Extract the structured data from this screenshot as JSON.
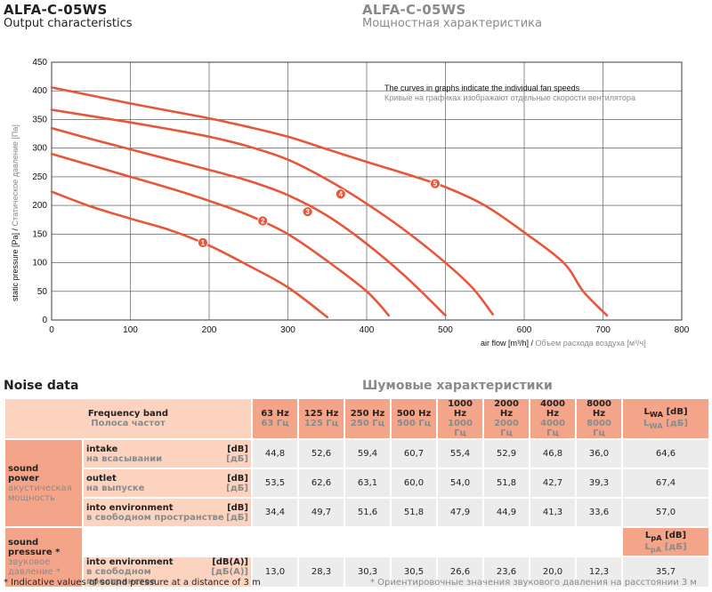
{
  "header": {
    "title_en": "ALFA-C-05WS",
    "subtitle_en": "Output characteristics",
    "title_ru": "ALFA-C-05WS",
    "subtitle_ru": "Мощностная характеристика"
  },
  "chart_data": {
    "type": "line",
    "title": "",
    "xlabel_en": "air flow [m³/h]",
    "xlabel_ru": "Объем расхода воздуха [м³/ч]",
    "ylabel_en": "static pressure [Pa]",
    "ylabel_ru": "Статическое давление [Па]",
    "xlim": [
      0,
      800
    ],
    "ylim": [
      0,
      450
    ],
    "xticks": [
      0,
      100,
      200,
      300,
      400,
      500,
      600,
      700,
      800
    ],
    "yticks": [
      0,
      50,
      100,
      150,
      200,
      250,
      300,
      350,
      400,
      450
    ],
    "grid": true,
    "note_en": "The curves in graphs indicate the individual fan speeds",
    "note_ru": "Кривые на графиках изображают отдельные скорости вентилятора",
    "series": [
      {
        "marker": "1",
        "marker_at": [
          192,
          135
        ],
        "points": [
          [
            0,
            224
          ],
          [
            50,
            198
          ],
          [
            100,
            177
          ],
          [
            150,
            157
          ],
          [
            200,
            130
          ],
          [
            250,
            95
          ],
          [
            300,
            57
          ],
          [
            350,
            5
          ]
        ]
      },
      {
        "marker": "2",
        "marker_at": [
          268,
          173
        ],
        "points": [
          [
            0,
            290
          ],
          [
            50,
            270
          ],
          [
            100,
            250
          ],
          [
            150,
            230
          ],
          [
            200,
            208
          ],
          [
            250,
            183
          ],
          [
            300,
            150
          ],
          [
            350,
            103
          ],
          [
            400,
            50
          ],
          [
            428,
            8
          ]
        ]
      },
      {
        "marker": "3",
        "marker_at": [
          325,
          189
        ],
        "points": [
          [
            0,
            335
          ],
          [
            50,
            316
          ],
          [
            100,
            298
          ],
          [
            150,
            280
          ],
          [
            200,
            262
          ],
          [
            250,
            243
          ],
          [
            300,
            218
          ],
          [
            350,
            182
          ],
          [
            400,
            133
          ],
          [
            450,
            75
          ],
          [
            500,
            8
          ]
        ]
      },
      {
        "marker": "4",
        "marker_at": [
          367,
          220
        ],
        "points": [
          [
            0,
            367
          ],
          [
            50,
            356
          ],
          [
            100,
            345
          ],
          [
            150,
            333
          ],
          [
            200,
            320
          ],
          [
            250,
            303
          ],
          [
            300,
            280
          ],
          [
            350,
            245
          ],
          [
            400,
            203
          ],
          [
            450,
            155
          ],
          [
            500,
            100
          ],
          [
            535,
            55
          ],
          [
            560,
            10
          ]
        ]
      },
      {
        "marker": "5",
        "marker_at": [
          487,
          238
        ],
        "points": [
          [
            0,
            406
          ],
          [
            50,
            392
          ],
          [
            100,
            378
          ],
          [
            150,
            365
          ],
          [
            200,
            352
          ],
          [
            250,
            337
          ],
          [
            300,
            320
          ],
          [
            350,
            298
          ],
          [
            400,
            276
          ],
          [
            450,
            255
          ],
          [
            500,
            232
          ],
          [
            550,
            200
          ],
          [
            600,
            153
          ],
          [
            650,
            100
          ],
          [
            675,
            50
          ],
          [
            705,
            8
          ]
        ]
      }
    ],
    "line_color": "#e8563a"
  },
  "noise": {
    "title_en": "Noise data",
    "title_ru": "Шумовые характеристики",
    "band_en": "Frequency band",
    "band_ru": "Полоса частот",
    "freqs_en": [
      "63 Hz",
      "125 Hz",
      "250 Hz",
      "500 Hz",
      "1000 Hz",
      "2000 Hz",
      "4000 Hz",
      "8000 Hz"
    ],
    "freqs_ru": [
      "63 Гц",
      "125 Гц",
      "250 Гц",
      "500 Гц",
      "1000 Гц",
      "2000 Гц",
      "4000 Гц",
      "8000 Гц"
    ],
    "lwa_en": "L",
    "lwa_sub": "WA",
    "lwa_unit_en": "[dB]",
    "lwa_ru": "L",
    "lwa_unit_ru": "[дБ]",
    "lpa_en": "L",
    "lpa_sub": "pA",
    "lpa_unit_en": "[dB]",
    "lpa_ru": "L",
    "lpa_unit_ru": "[дБ]",
    "power_en_1": "sound",
    "power_en_2": "power",
    "power_ru_1": "акустическая",
    "power_ru_2": "мощность",
    "pressure_en_1": "sound",
    "pressure_en_2": "pressure *",
    "pressure_ru_1": "звуковое",
    "pressure_ru_2": "давление *",
    "rows": [
      {
        "en": "intake",
        "ru": "на всасывании",
        "unit_en": "[dB]",
        "unit_ru": "[дБ]",
        "values": [
          "44,8",
          "52,6",
          "59,4",
          "60,7",
          "55,4",
          "52,9",
          "46,8",
          "36,0"
        ],
        "total": "64,6"
      },
      {
        "en": "outlet",
        "ru": "на выпуске",
        "unit_en": "[dB]",
        "unit_ru": "[дБ]",
        "values": [
          "53,5",
          "62,6",
          "63,1",
          "60,0",
          "54,0",
          "51,8",
          "42,7",
          "39,3"
        ],
        "total": "67,4"
      },
      {
        "en": "into environment",
        "ru": "в свободном пространстве",
        "unit_en": "[dB]",
        "unit_ru": "[дБ]",
        "values": [
          "34,4",
          "49,7",
          "51,6",
          "51,8",
          "47,9",
          "44,9",
          "41,3",
          "33,6"
        ],
        "total": "57,0"
      }
    ],
    "pressure_row": {
      "en": "into environment",
      "ru": "в свободном пространстве",
      "unit_en": "[dB(A)]",
      "unit_ru": "[дБ(A)]",
      "values": [
        "13,0",
        "28,3",
        "30,3",
        "30,5",
        "26,6",
        "23,6",
        "20,0",
        "12,3"
      ],
      "total": "35,7"
    },
    "footnote_en": "* Indicative values of sound pressure at a distance of 3 m",
    "footnote_ru": "* Ориентировочные значения звукового давления на расстоянии 3 м"
  }
}
